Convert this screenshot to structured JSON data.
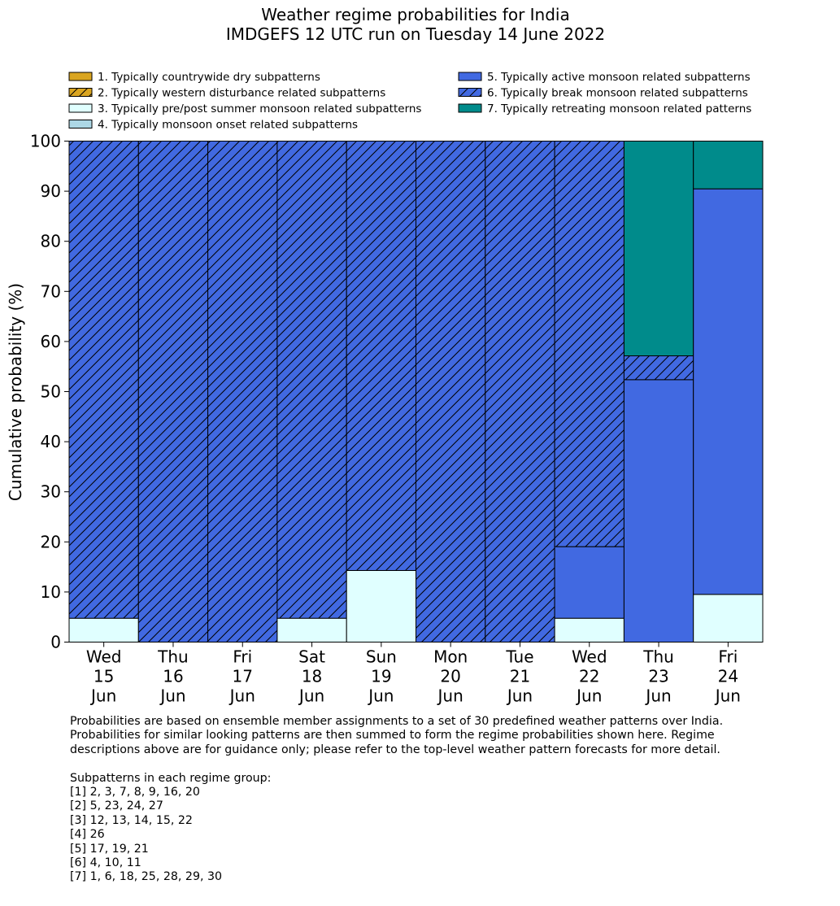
{
  "chart_data": {
    "type": "bar",
    "stacked": true,
    "title": "Weather regime probabilities for India",
    "subtitle": "IMDGEFS 12 UTC run on Tuesday 14 June 2022",
    "xlabel": "",
    "ylabel": "Cumulative probability (%)",
    "ylim": [
      0,
      100
    ],
    "yticks": [
      "0",
      "10",
      "20",
      "30",
      "40",
      "50",
      "60",
      "70",
      "80",
      "90",
      "100"
    ],
    "grid": false,
    "legend_position": "top",
    "categories": [
      [
        "Wed",
        "15",
        "Jun"
      ],
      [
        "Thu",
        "16",
        "Jun"
      ],
      [
        "Fri",
        "17",
        "Jun"
      ],
      [
        "Sat",
        "18",
        "Jun"
      ],
      [
        "Sun",
        "19",
        "Jun"
      ],
      [
        "Mon",
        "20",
        "Jun"
      ],
      [
        "Tue",
        "21",
        "Jun"
      ],
      [
        "Wed",
        "22",
        "Jun"
      ],
      [
        "Thu",
        "23",
        "Jun"
      ],
      [
        "Fri",
        "24",
        "Jun"
      ]
    ],
    "series": [
      {
        "name": "1. Typically countrywide dry subpatterns",
        "color": "#DAA520",
        "hatch": false,
        "values": [
          0,
          0,
          0,
          0,
          0,
          0,
          0,
          0,
          0,
          0
        ]
      },
      {
        "name": "2. Typically western disturbance related subpatterns",
        "color": "#DAA520",
        "hatch": true,
        "values": [
          0,
          0,
          0,
          0,
          0,
          0,
          0,
          0,
          0,
          0
        ]
      },
      {
        "name": "3. Typically pre/post summer monsoon related subpatterns",
        "color": "#E0FFFF",
        "hatch": false,
        "values": [
          4.76,
          0,
          0,
          4.76,
          14.29,
          0,
          0,
          4.76,
          0,
          9.52
        ]
      },
      {
        "name": "4. Typically monsoon onset related subpatterns",
        "color": "#ADD8E6",
        "hatch": false,
        "values": [
          0,
          0,
          0,
          0,
          0,
          0,
          0,
          0,
          0,
          0
        ]
      },
      {
        "name": "5. Typically active monsoon related subpatterns",
        "color": "#4169E1",
        "hatch": false,
        "values": [
          0,
          0,
          0,
          0,
          0,
          0,
          0,
          14.29,
          52.38,
          80.95
        ]
      },
      {
        "name": "6. Typically break monsoon related subpatterns",
        "color": "#4169E1",
        "hatch": true,
        "values": [
          95.24,
          100,
          100,
          95.24,
          85.71,
          100,
          100,
          80.95,
          4.76,
          0
        ]
      },
      {
        "name": "7. Typically retreating monsoon related patterns",
        "color": "#008B8B",
        "hatch": false,
        "values": [
          0,
          0,
          0,
          0,
          0,
          0,
          0,
          0,
          42.86,
          9.53
        ]
      }
    ]
  },
  "notes": {
    "lines": [
      "Probabilities are based on ensemble member assignments to a set of 30 predefined weather patterns over India.",
      "Probabilities for similar looking patterns are then summed to form the regime probabilities shown here. Regime",
      "descriptions above are for guidance only; please refer to the top-level weather pattern forecasts for more detail."
    ],
    "groups_heading": "Subpatterns in each regime group:",
    "groups": [
      "[1] 2, 3, 7, 8, 9, 16, 20",
      "[2] 5, 23, 24, 27",
      "[3] 12, 13, 14, 15, 22",
      "[4] 26",
      "[5] 17, 19, 21",
      "[6] 4, 10, 11",
      "[7] 1, 6, 18, 25, 28, 29, 30"
    ]
  }
}
